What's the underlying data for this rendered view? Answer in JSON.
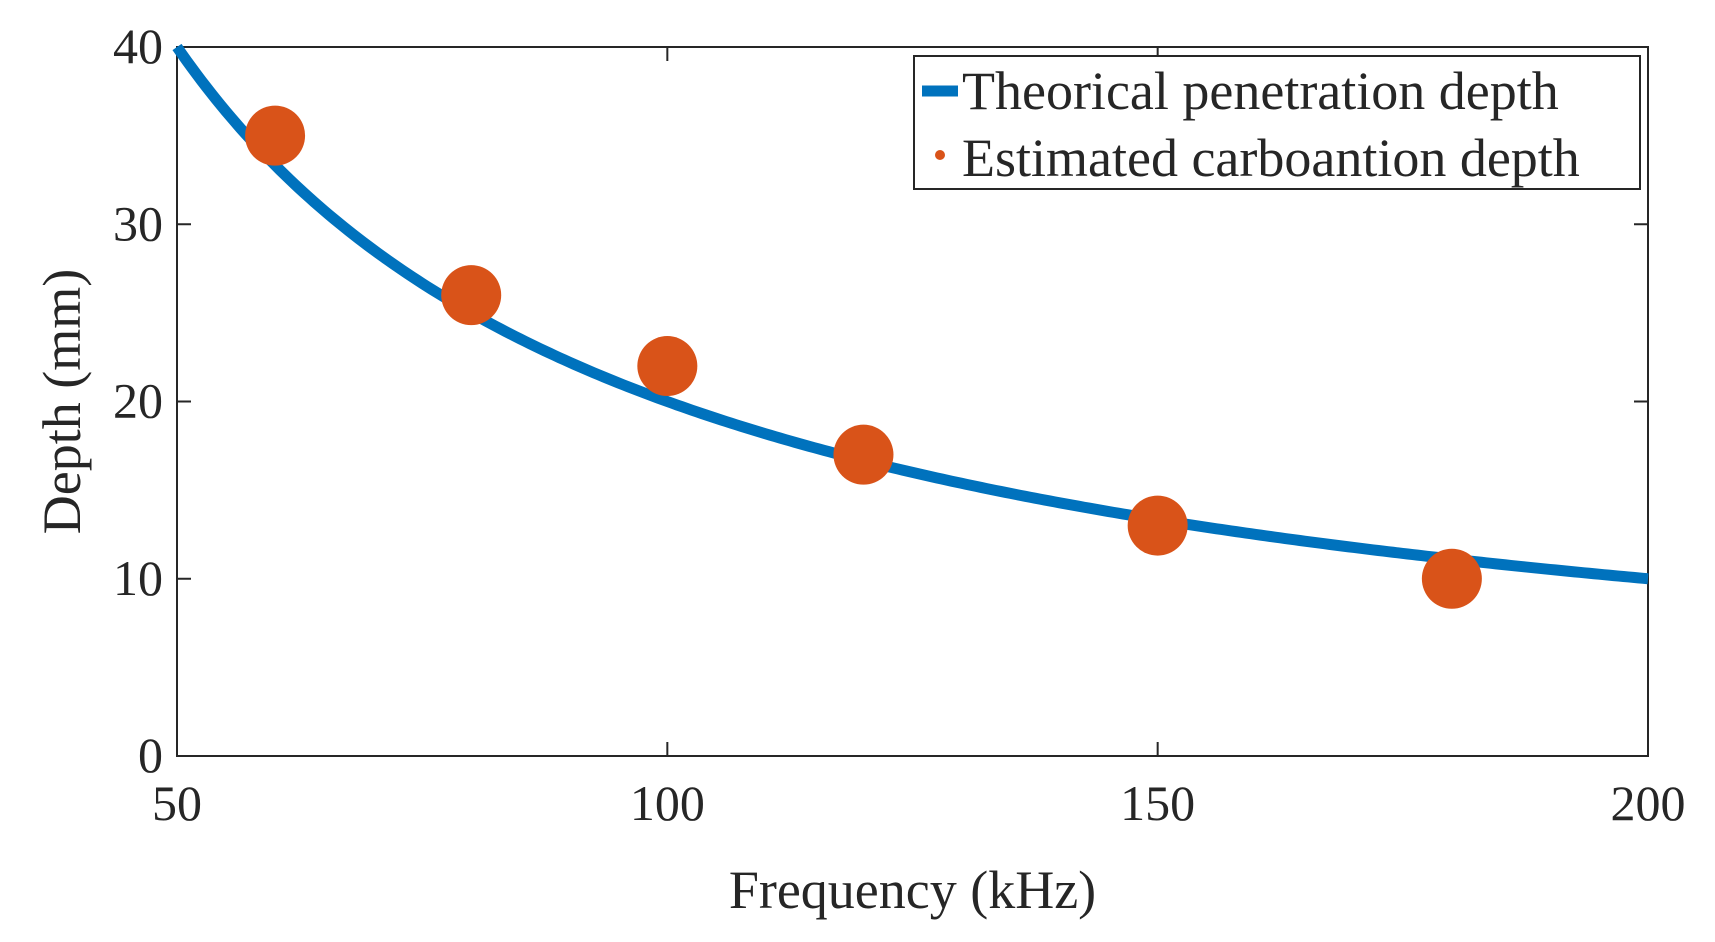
{
  "chart_data": {
    "type": "line",
    "title": "",
    "xlabel": "Frequency (kHz)",
    "ylabel": "Depth (mm)",
    "xlim": [
      50,
      200
    ],
    "ylim": [
      0,
      40
    ],
    "xticks": [
      50,
      100,
      150,
      200
    ],
    "yticks": [
      0,
      10,
      20,
      30,
      40
    ],
    "grid": false,
    "legend_position": "top-right",
    "series": [
      {
        "name": "Theorical penetration depth",
        "kind": "line",
        "color": "#0072BD",
        "formula": "y = 2000 / x",
        "x": [
          50,
          55,
          60,
          65,
          70,
          75,
          80,
          85,
          90,
          95,
          100,
          110,
          120,
          130,
          140,
          150,
          160,
          170,
          180,
          190,
          200
        ],
        "y": [
          40,
          36.36,
          33.33,
          30.77,
          28.57,
          26.67,
          25,
          23.53,
          22.22,
          21.05,
          20,
          18.18,
          16.67,
          15.38,
          14.29,
          13.33,
          12.5,
          11.76,
          11.11,
          10.53,
          10
        ]
      },
      {
        "name": "Estimated carboantion depth",
        "kind": "scatter",
        "color": "#D95319",
        "x": [
          60,
          80,
          100,
          120,
          150,
          180
        ],
        "y": [
          35,
          26,
          22,
          17,
          13,
          10
        ]
      }
    ]
  }
}
